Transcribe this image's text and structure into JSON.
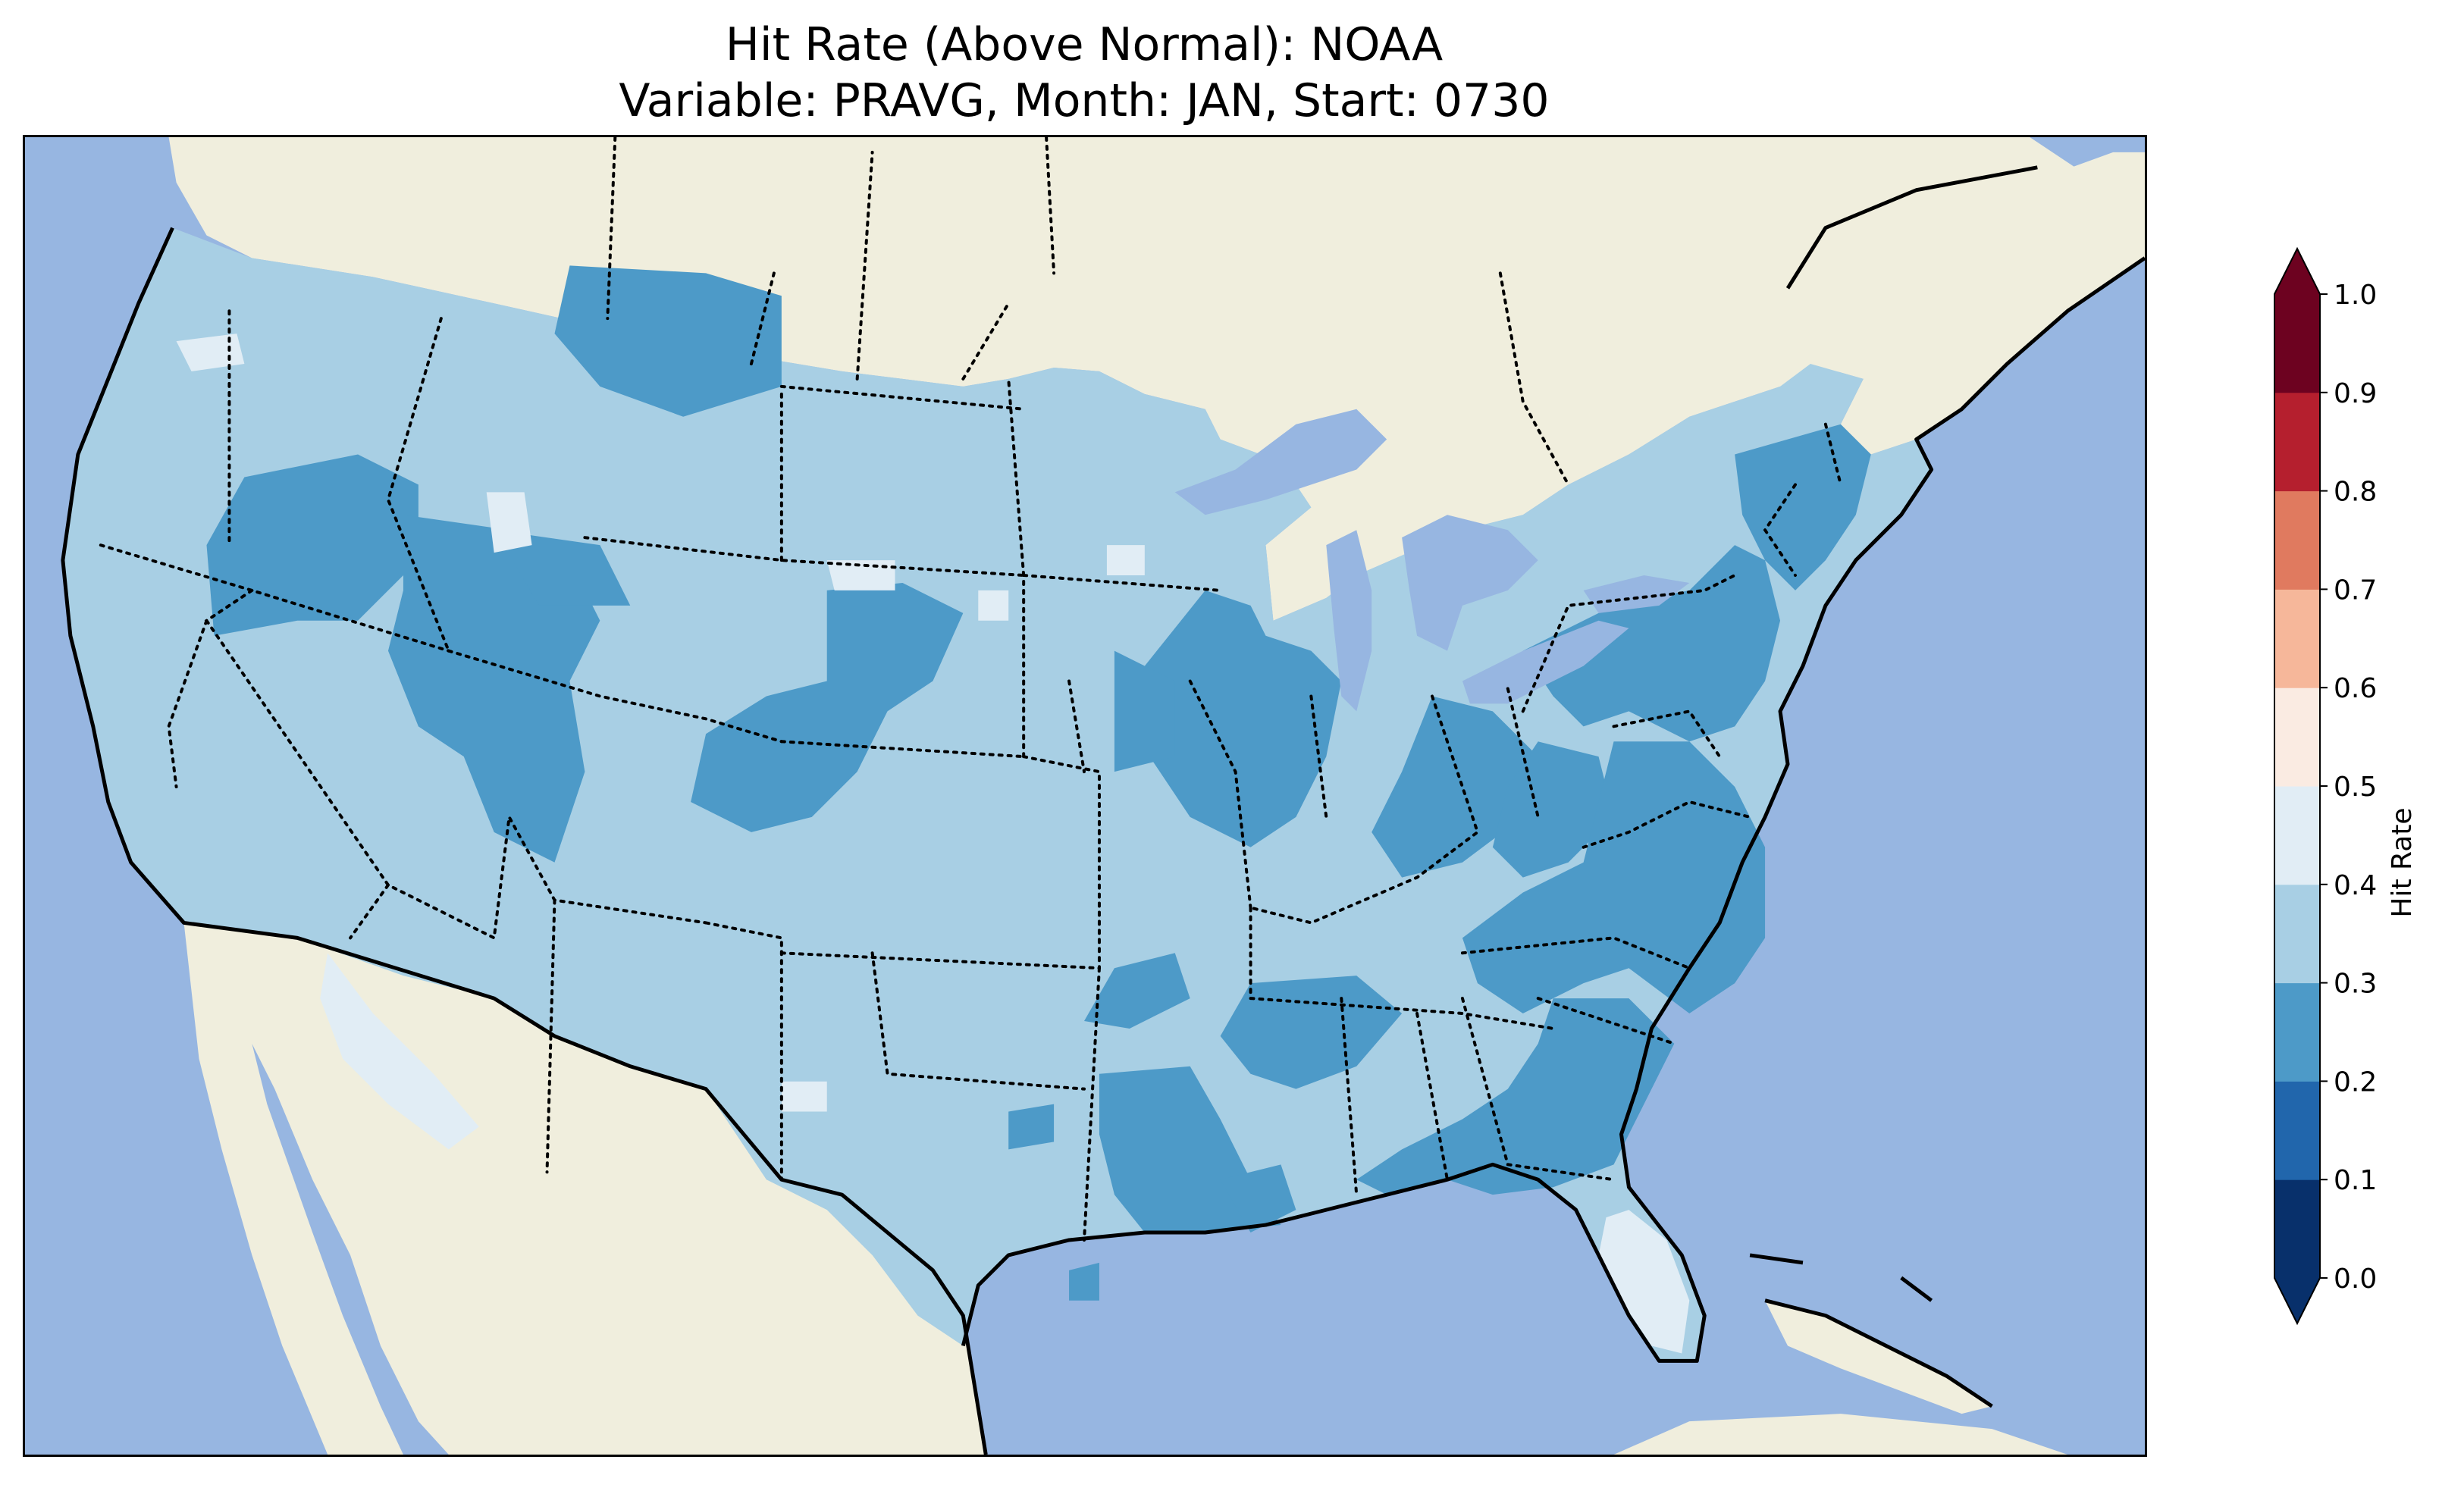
{
  "title": {
    "line1": "Hit Rate (Above Normal): NOAA",
    "line2": "Variable: PRAVG, Month: JAN, Start: 0730"
  },
  "colorbar": {
    "label": "Hit Rate",
    "ticks": [
      "0.0",
      "0.1",
      "0.2",
      "0.3",
      "0.4",
      "0.5",
      "0.6",
      "0.7",
      "0.8",
      "0.9",
      "1.0"
    ],
    "colors": [
      "#053061",
      "#2166ac",
      "#4393c3",
      "#92c5de",
      "#d1e5f0",
      "#f7f7f7",
      "#fddbc7",
      "#f4a582",
      "#d6604d",
      "#b2182b",
      "#67001f"
    ],
    "bins": [
      "#08306b",
      "#2166ac",
      "#4d9ac8",
      "#a8cfe4",
      "#e1edf5",
      "#faebe2",
      "#f6b79a",
      "#e07a5f",
      "#b51f2e",
      "#6d0220"
    ],
    "extend": "both"
  },
  "map": {
    "region": "CONUS",
    "ocean_color": "#97b6e1",
    "land_color": "#f0eedd",
    "dominant_hit_rate_bin": "0.3-0.4",
    "coastline": "solid",
    "borders": "dotted"
  }
}
